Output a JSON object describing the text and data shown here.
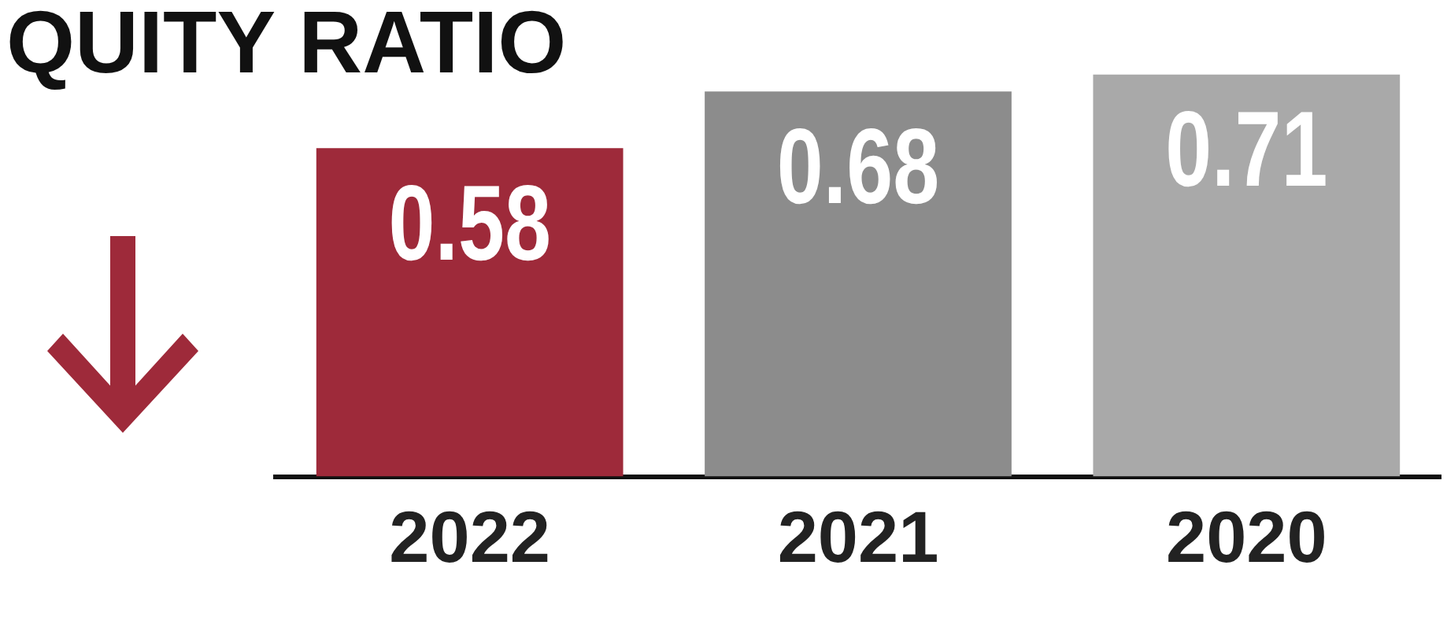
{
  "chart_data": {
    "type": "bar",
    "title": "QUITY RATIO",
    "categories": [
      "2022",
      "2021",
      "2020"
    ],
    "values": [
      0.58,
      0.68,
      0.71
    ],
    "colors": [
      "#9e2a3a",
      "#8c8c8c",
      "#a9a9a9"
    ],
    "tick_labels": "x",
    "data_labels": true,
    "grid": false,
    "legend": false
  }
}
